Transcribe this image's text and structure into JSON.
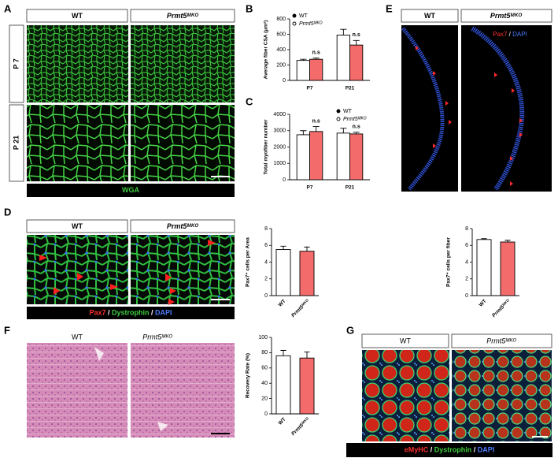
{
  "panels": {
    "A": {
      "letter": "A",
      "columns": [
        "WT",
        "Prmt5ᴹᴷᴼ"
      ],
      "rows": [
        "P 7",
        "P 21"
      ],
      "stain": [
        "WGA"
      ]
    },
    "B": {
      "letter": "B"
    },
    "C": {
      "letter": "C"
    },
    "D": {
      "letter": "D",
      "columns": [
        "WT",
        "Prmt5ᴹᴷᴼ"
      ],
      "stain": [
        "Pax7",
        " / ",
        "Dystrophin",
        " / ",
        "DAPI"
      ]
    },
    "E": {
      "letter": "E",
      "columns": [
        "WT",
        "Prmt5ᴹᴷᴼ"
      ],
      "stain": [
        "Pax7",
        " / ",
        "DAPI"
      ]
    },
    "F": {
      "letter": "F",
      "columns": [
        "WT",
        "Prmt5ᴹᴷᴼ"
      ]
    },
    "G": {
      "letter": "G",
      "columns": [
        "WT",
        "Prmt5ᴹᴷᴼ"
      ],
      "stain": [
        "eMyHC",
        " / ",
        "Dystrophin",
        " / ",
        "DAPI"
      ]
    }
  },
  "chart_data": [
    {
      "type": "bar",
      "ylabel": "Average fiber CSA (μm²)",
      "categories": [
        "P7",
        "P21"
      ],
      "series": [
        {
          "name": "WT",
          "color": "#ffffff",
          "values": [
            260,
            590
          ],
          "errors": [
            15,
            75
          ]
        },
        {
          "name": "Prmt5ᴹᴷᴼ",
          "color": "#f36b6b",
          "values": [
            275,
            460
          ],
          "errors": [
            15,
            60
          ]
        }
      ],
      "annotations": [
        "n.s",
        "n.s"
      ],
      "legend": "upper left",
      "ylim": [
        0,
        800
      ],
      "yticks": [
        0,
        200,
        400,
        600,
        800
      ]
    },
    {
      "type": "bar",
      "ylabel": "Total myofiber number",
      "categories": [
        "P7",
        "P21"
      ],
      "series": [
        {
          "name": "WT",
          "color": "#ffffff",
          "values": [
            2750,
            2850
          ],
          "errors": [
            250,
            300
          ]
        },
        {
          "name": "Prmt5ᴹᴷᴼ",
          "color": "#f36b6b",
          "values": [
            2950,
            2800
          ],
          "errors": [
            300,
            100
          ]
        }
      ],
      "annotations": [
        "n.s",
        "n.s"
      ],
      "legend": "upper right",
      "ylim": [
        0,
        4000
      ],
      "yticks": [
        0,
        1000,
        2000,
        3000,
        4000
      ]
    },
    {
      "type": "bar",
      "ylabel": "Pax7⁺ cells per Area",
      "categories": [
        "WT",
        "Prmt5ᴹᴷᴼ"
      ],
      "values": [
        5.5,
        5.3
      ],
      "errors": [
        0.4,
        0.5
      ],
      "colors": [
        "#ffffff",
        "#f36b6b"
      ],
      "ylim": [
        0,
        8
      ],
      "yticks": [
        0,
        2,
        4,
        6,
        8
      ]
    },
    {
      "type": "bar",
      "ylabel": "Pax7⁺ cells per fiber",
      "categories": [
        "WT",
        "Prmt5ᴹᴷᴼ"
      ],
      "values": [
        6.7,
        6.4
      ],
      "errors": [
        0.1,
        0.2
      ],
      "colors": [
        "#ffffff",
        "#f36b6b"
      ],
      "ylim": [
        0,
        8
      ],
      "yticks": [
        0,
        2,
        4,
        6,
        8
      ]
    },
    {
      "type": "bar",
      "ylabel": "Recovery Rate (%)",
      "categories": [
        "WT",
        "Prmt5ᴹᴷᴼ"
      ],
      "values": [
        76,
        73
      ],
      "errors": [
        7,
        8
      ],
      "colors": [
        "#ffffff",
        "#f36b6b"
      ],
      "ylim": [
        0,
        100
      ],
      "yticks": [
        0,
        20,
        40,
        60,
        80,
        100
      ]
    }
  ]
}
